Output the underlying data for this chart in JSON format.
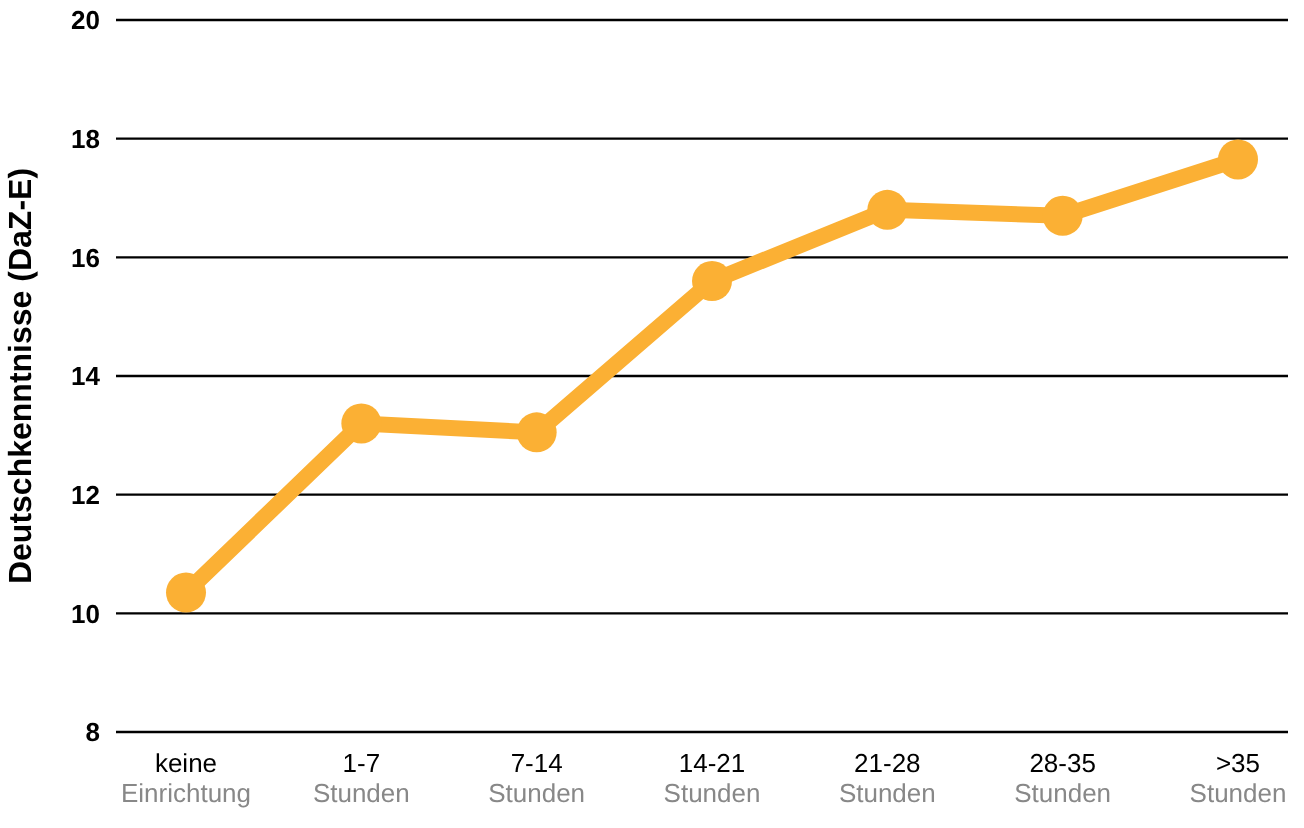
{
  "chart_data": {
    "type": "line",
    "ylabel": "Deutschkenntnisse (DaZ-E)",
    "categories": [
      "keine\nEinrichtung",
      "1-7\nStunden",
      "7-14\nStunden",
      "14-21\nStunden",
      "21-28\nStunden",
      "28-35\nStunden",
      ">35\nStunden"
    ],
    "series": [
      {
        "color": "#fbb034",
        "values": [
          10.35,
          13.2,
          13.05,
          15.6,
          16.8,
          16.7,
          17.65
        ]
      }
    ],
    "ylim": [
      8,
      20
    ],
    "yticks": [
      8,
      10,
      12,
      14,
      16,
      18,
      20
    ],
    "grid": "y",
    "marker": "circle",
    "line_style": "solid",
    "legend": false
  }
}
